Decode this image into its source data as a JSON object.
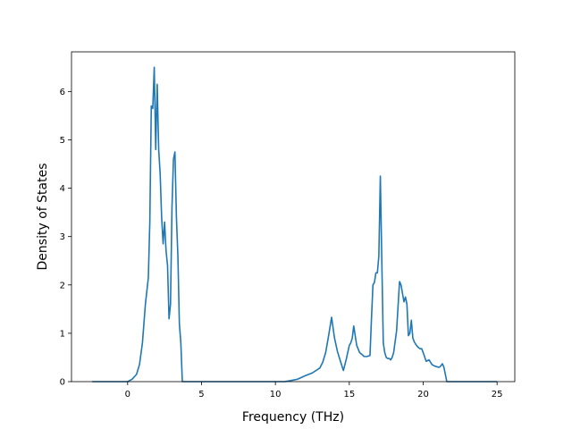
{
  "chart_data": {
    "type": "line",
    "xlabel": "Frequency (THz)",
    "ylabel": "Density of States",
    "xlim": [
      -3.8,
      26.2
    ],
    "ylim": [
      0,
      6.82
    ],
    "xticks": [
      0,
      5,
      10,
      15,
      20,
      25
    ],
    "yticks": [
      0,
      1,
      2,
      3,
      4,
      5,
      6
    ],
    "grid": false,
    "series": [
      {
        "color": "#1f77b4",
        "x": [
          -2.4,
          0.0,
          0.3,
          0.6,
          0.8,
          1.0,
          1.2,
          1.4,
          1.5,
          1.6,
          1.7,
          1.8,
          1.9,
          2.0,
          2.1,
          2.2,
          2.3,
          2.4,
          2.5,
          2.6,
          2.7,
          2.8,
          2.9,
          3.0,
          3.1,
          3.2,
          3.3,
          3.4,
          3.5,
          3.6,
          3.7,
          3.8,
          3.9,
          4.0,
          4.1,
          4.2,
          4.3,
          4.4,
          4.5,
          5.0,
          10.0,
          10.6,
          11.0,
          11.5,
          12.0,
          12.5,
          13.0,
          13.2,
          13.4,
          13.6,
          13.8,
          14.0,
          14.2,
          14.4,
          14.6,
          14.8,
          15.0,
          15.1,
          15.2,
          15.3,
          15.5,
          15.7,
          15.9,
          16.0,
          16.2,
          16.4,
          16.5,
          16.6,
          16.7,
          16.8,
          16.9,
          17.0,
          17.1,
          17.2,
          17.3,
          17.4,
          17.5,
          17.6,
          17.7,
          17.8,
          17.9,
          18.0,
          18.2,
          18.4,
          18.5,
          18.7,
          18.8,
          18.9,
          19.0,
          19.1,
          19.2,
          19.3,
          19.4,
          19.5,
          19.6,
          19.7,
          19.8,
          19.9,
          20.0,
          20.2,
          20.4,
          20.6,
          20.8,
          21.0,
          21.1,
          21.2,
          21.3,
          21.4,
          21.6,
          21.8,
          22.0,
          22.2,
          22.3,
          22.4,
          22.5,
          22.6,
          22.7,
          23.0,
          25.0
        ],
        "y": [
          0.0,
          0.0,
          0.05,
          0.15,
          0.35,
          0.8,
          1.6,
          2.15,
          3.3,
          5.7,
          5.65,
          6.5,
          4.8,
          6.15,
          4.8,
          4.3,
          3.4,
          2.85,
          3.3,
          2.7,
          2.4,
          1.3,
          1.6,
          3.6,
          4.6,
          4.75,
          3.4,
          2.6,
          1.2,
          0.8,
          0.0,
          0.0,
          0.0,
          0.0,
          0.0,
          0.0,
          0.0,
          0.0,
          0.0,
          0.0,
          0.0,
          0.0,
          0.02,
          0.05,
          0.12,
          0.18,
          0.28,
          0.4,
          0.6,
          0.95,
          1.33,
          0.9,
          0.62,
          0.42,
          0.23,
          0.47,
          0.75,
          0.8,
          0.9,
          1.15,
          0.75,
          0.6,
          0.55,
          0.52,
          0.52,
          0.54,
          1.3,
          2.0,
          2.05,
          2.25,
          2.25,
          2.6,
          4.25,
          2.5,
          0.8,
          0.6,
          0.5,
          0.48,
          0.48,
          0.45,
          0.5,
          0.6,
          1.05,
          2.07,
          2.0,
          1.65,
          1.75,
          1.6,
          0.95,
          1.0,
          1.27,
          0.9,
          0.82,
          0.77,
          0.73,
          0.7,
          0.68,
          0.68,
          0.6,
          0.42,
          0.45,
          0.35,
          0.32,
          0.3,
          0.3,
          0.33,
          0.37,
          0.3,
          0.0,
          0.0,
          0.0,
          0.0,
          0.0,
          0.0,
          0.0,
          0.0,
          0.0,
          0.0,
          0.0
        ]
      }
    ]
  }
}
